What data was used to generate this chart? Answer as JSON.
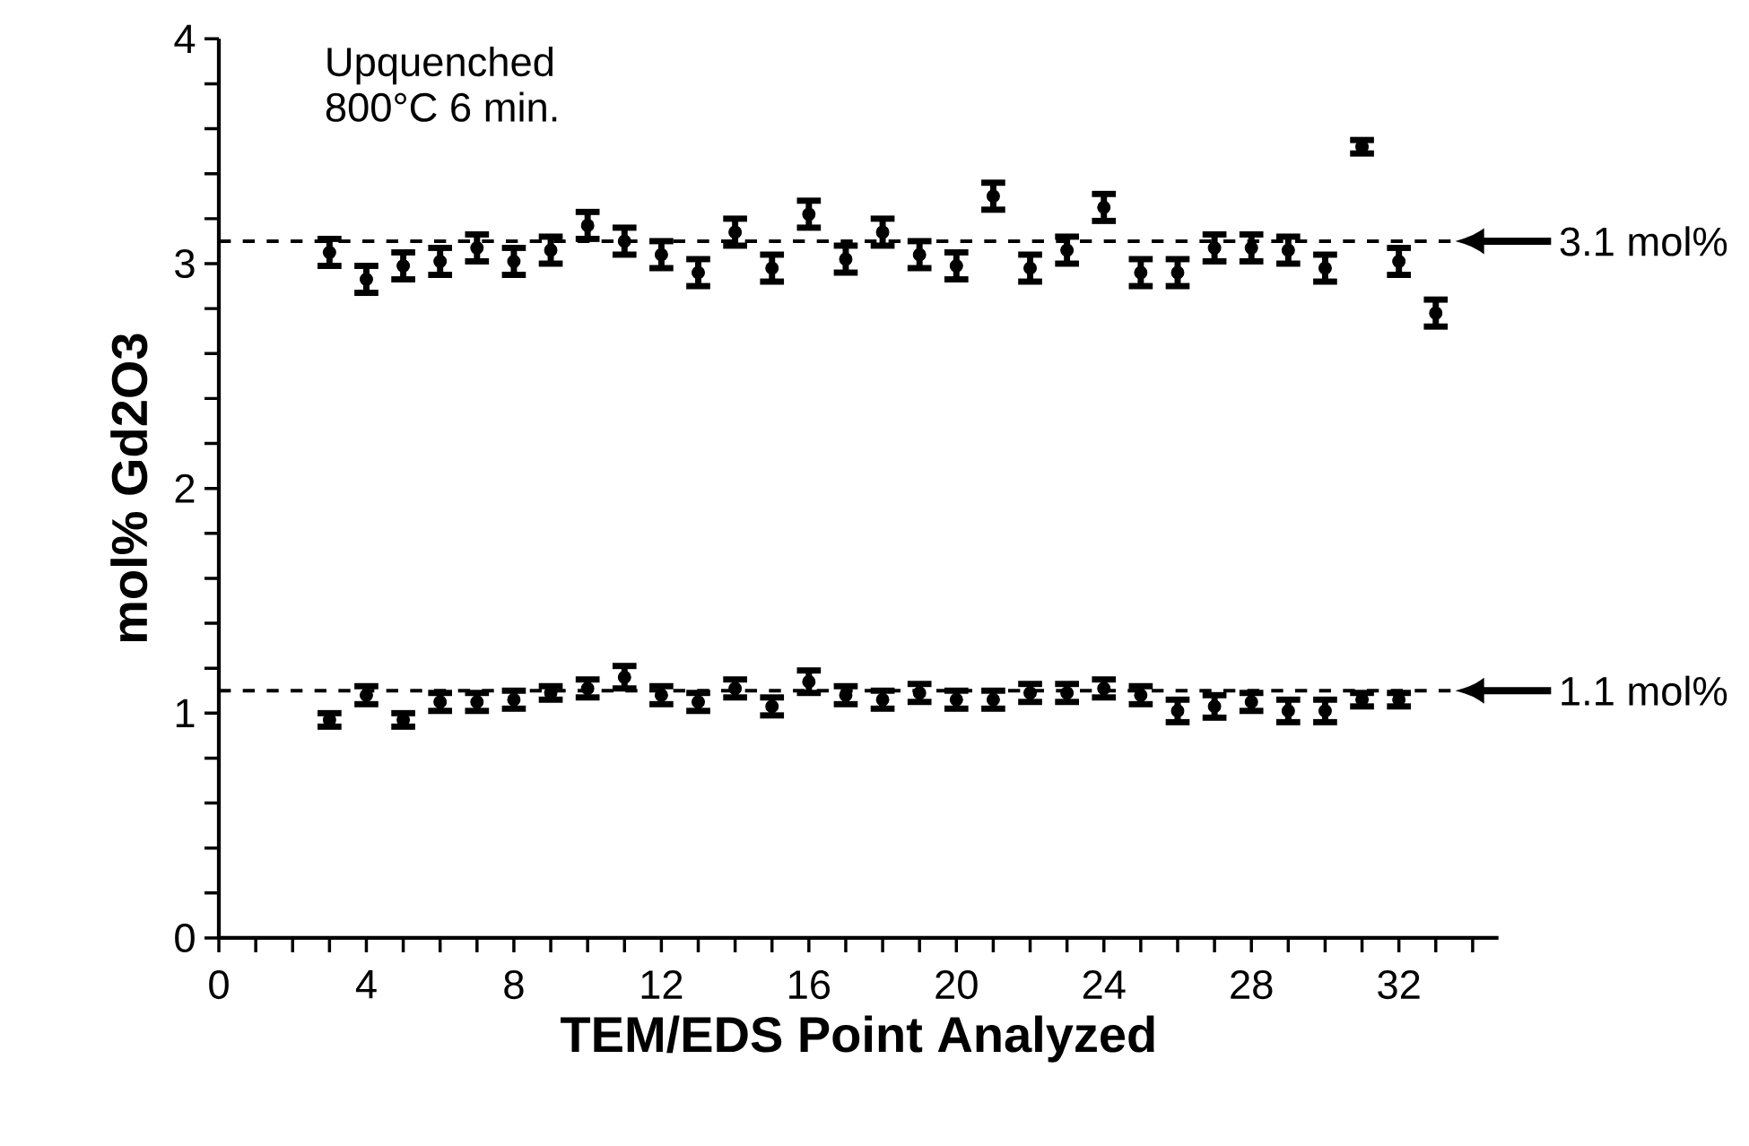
{
  "chart_data": {
    "type": "scatter",
    "xlabel": "TEM/EDS Point Analyzed",
    "ylabel": "mol% Gd2O3",
    "annotations": [
      "Upquenched",
      "800°C 6 min."
    ],
    "xlim": [
      0,
      34.7
    ],
    "ylim": [
      0,
      4
    ],
    "xticks": [
      0,
      {
        "value": 1,
        "label": null
      },
      {
        "value": 2,
        "label": null
      },
      {
        "value": 3,
        "label": null
      },
      4,
      {
        "value": 5,
        "label": null
      },
      {
        "value": 6,
        "label": null
      },
      {
        "value": 7,
        "label": null
      },
      8,
      {
        "value": 9,
        "label": null
      },
      {
        "value": 10,
        "label": null
      },
      {
        "value": 11,
        "label": null
      },
      12,
      {
        "value": 13,
        "label": null
      },
      {
        "value": 14,
        "label": null
      },
      {
        "value": 15,
        "label": null
      },
      16,
      {
        "value": 17,
        "label": null
      },
      {
        "value": 18,
        "label": null
      },
      {
        "value": 19,
        "label": null
      },
      20,
      {
        "value": 21,
        "label": null
      },
      {
        "value": 22,
        "label": null
      },
      {
        "value": 23,
        "label": null
      },
      24,
      {
        "value": 25,
        "label": null
      },
      {
        "value": 26,
        "label": null
      },
      {
        "value": 27,
        "label": null
      },
      28,
      {
        "value": 29,
        "label": null
      },
      {
        "value": 30,
        "label": null
      },
      {
        "value": 31,
        "label": null
      },
      32,
      {
        "value": 33,
        "label": null
      },
      {
        "value": 34,
        "label": null
      }
    ],
    "yticks": [
      0,
      {
        "value": 0.2,
        "label": null
      },
      {
        "value": 0.4,
        "label": null
      },
      {
        "value": 0.6,
        "label": null
      },
      {
        "value": 0.8,
        "label": null
      },
      1,
      {
        "value": 1.2,
        "label": null
      },
      {
        "value": 1.4,
        "label": null
      },
      {
        "value": 1.6,
        "label": null
      },
      {
        "value": 1.8,
        "label": null
      },
      2,
      {
        "value": 2.2,
        "label": null
      },
      {
        "value": 2.4,
        "label": null
      },
      {
        "value": 2.6,
        "label": null
      },
      {
        "value": 2.8,
        "label": null
      },
      3,
      {
        "value": 3.2,
        "label": null
      },
      {
        "value": 3.4,
        "label": null
      },
      {
        "value": 3.6,
        "label": null
      },
      {
        "value": 3.8,
        "label": null
      },
      4
    ],
    "grid": false,
    "marker": "circle",
    "series": [
      {
        "color": "#000000",
        "x": [
          3,
          4,
          5,
          6,
          7,
          8,
          9,
          10,
          11,
          12,
          13,
          14,
          15,
          16,
          17,
          18,
          19,
          20,
          21,
          22,
          23,
          24,
          25,
          26,
          27,
          28,
          29,
          30,
          31,
          32,
          33
        ],
        "values": [
          3.05,
          2.93,
          2.99,
          3.01,
          3.07,
          3.01,
          3.06,
          3.17,
          3.1,
          3.04,
          2.96,
          3.14,
          2.98,
          3.22,
          3.02,
          3.14,
          3.04,
          2.99,
          3.3,
          2.98,
          3.06,
          3.25,
          2.96,
          2.96,
          3.07,
          3.07,
          3.06,
          2.98,
          3.52,
          3.01,
          2.78
        ],
        "errors": [
          0.06,
          0.06,
          0.06,
          0.06,
          0.06,
          0.06,
          0.06,
          0.06,
          0.06,
          0.06,
          0.06,
          0.06,
          0.06,
          0.06,
          0.06,
          0.06,
          0.06,
          0.06,
          0.06,
          0.06,
          0.06,
          0.06,
          0.06,
          0.06,
          0.06,
          0.06,
          0.06,
          0.06,
          0.03,
          0.06,
          0.06
        ]
      },
      {
        "color": "#000000",
        "x": [
          3,
          4,
          5,
          6,
          7,
          8,
          9,
          10,
          11,
          12,
          13,
          14,
          15,
          16,
          17,
          18,
          19,
          20,
          21,
          22,
          23,
          24,
          25,
          26,
          27,
          28,
          29,
          30,
          31,
          32
        ],
        "values": [
          0.97,
          1.08,
          0.97,
          1.05,
          1.05,
          1.06,
          1.09,
          1.11,
          1.16,
          1.08,
          1.05,
          1.11,
          1.03,
          1.14,
          1.08,
          1.06,
          1.09,
          1.06,
          1.06,
          1.09,
          1.09,
          1.11,
          1.08,
          1.01,
          1.03,
          1.05,
          1.01,
          1.01,
          1.06,
          1.06
        ],
        "errors": [
          0.03,
          0.04,
          0.03,
          0.04,
          0.04,
          0.04,
          0.03,
          0.04,
          0.05,
          0.04,
          0.04,
          0.04,
          0.04,
          0.05,
          0.04,
          0.04,
          0.04,
          0.04,
          0.04,
          0.04,
          0.04,
          0.04,
          0.04,
          0.05,
          0.05,
          0.04,
          0.05,
          0.05,
          0.03,
          0.03
        ]
      }
    ],
    "ref_lines": [
      {
        "axis": "y",
        "value": 3.1,
        "label": "3.1 mol%",
        "line_style": "dashed"
      },
      {
        "axis": "y",
        "value": 1.1,
        "label": "1.1 mol%",
        "line_style": "dashed"
      }
    ]
  }
}
